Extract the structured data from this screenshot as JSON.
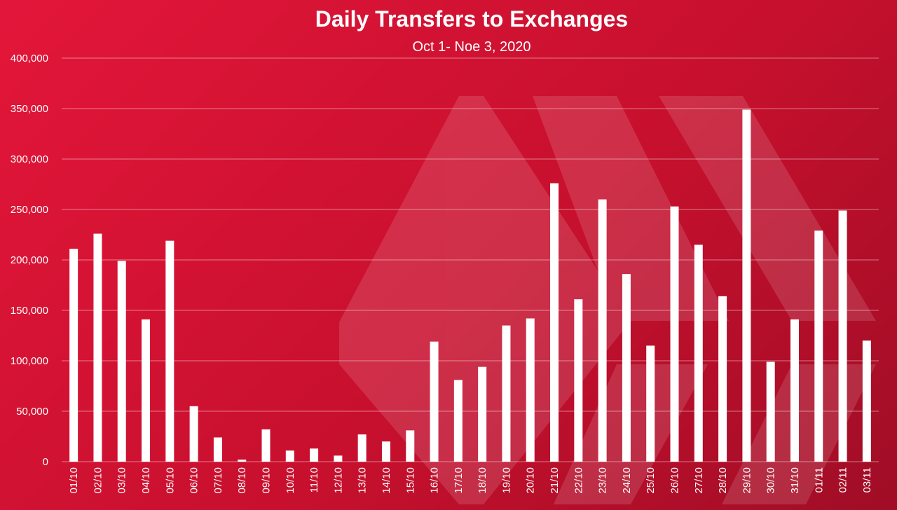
{
  "chart_data": {
    "type": "bar",
    "title": "Daily Transfers to Exchanges",
    "subtitle": "Oct 1- Noe 3, 2020",
    "xlabel": "",
    "ylabel": "",
    "ylim": [
      0,
      400000
    ],
    "y_ticks": [
      "0",
      "50,000",
      "100,000",
      "150,000",
      "200,000",
      "250,000",
      "300,000",
      "350,000",
      "400,000"
    ],
    "grid": true,
    "legend": "none",
    "bar_color": "#ffffff",
    "background_color": "#d4143a",
    "categories": [
      "01/10",
      "02/10",
      "03/10",
      "04/10",
      "05/10",
      "06/10",
      "07/10",
      "08/10",
      "09/10",
      "10/10",
      "11/10",
      "12/10",
      "13/10",
      "14/10",
      "15/10",
      "16/10",
      "17/10",
      "18/10",
      "19/10",
      "20/10",
      "21/10",
      "22/10",
      "23/10",
      "24/10",
      "25/10",
      "26/10",
      "27/10",
      "28/10",
      "29/10",
      "30/10",
      "31/10",
      "01/11",
      "02/11",
      "03/11"
    ],
    "values": [
      211000,
      226000,
      199000,
      141000,
      219000,
      55000,
      24000,
      2000,
      32000,
      11000,
      13000,
      6000,
      27000,
      20000,
      31000,
      119000,
      81000,
      94000,
      135000,
      142000,
      276000,
      161000,
      260000,
      186000,
      115000,
      253000,
      215000,
      164000,
      349000,
      99000,
      141000,
      229000,
      249000,
      120000
    ]
  }
}
